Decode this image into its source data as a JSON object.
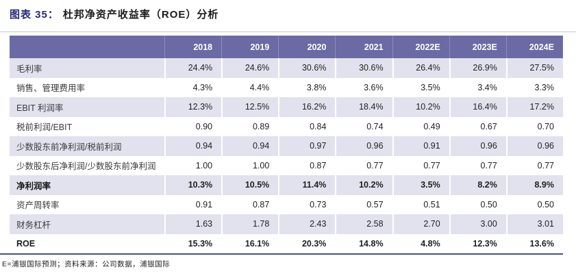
{
  "figure": {
    "label": "图表 35：",
    "title": "杜邦净资产收益率（ROE）分析"
  },
  "table": {
    "corner_label": "",
    "columns": [
      "2018",
      "2019",
      "2020",
      "2021",
      "2022E",
      "2023E",
      "2024E"
    ],
    "rows": [
      {
        "label": "毛利率",
        "bold": false,
        "values": [
          "24.4%",
          "24.6%",
          "30.6%",
          "30.6%",
          "26.4%",
          "26.9%",
          "27.5%"
        ]
      },
      {
        "label": "销售、管理费用率",
        "bold": false,
        "values": [
          "4.3%",
          "4.4%",
          "3.8%",
          "3.6%",
          "3.5%",
          "3.4%",
          "3.3%"
        ]
      },
      {
        "label": "EBIT 利润率",
        "bold": false,
        "values": [
          "12.3%",
          "12.5%",
          "16.2%",
          "18.4%",
          "10.2%",
          "16.4%",
          "17.2%"
        ]
      },
      {
        "label": "税前利润/EBIT",
        "bold": false,
        "values": [
          "0.90",
          "0.89",
          "0.84",
          "0.74",
          "0.49",
          "0.67",
          "0.70"
        ]
      },
      {
        "label": "少数股东前净利润/税前利润",
        "bold": false,
        "values": [
          "0.94",
          "0.94",
          "0.97",
          "0.96",
          "0.91",
          "0.96",
          "0.96"
        ]
      },
      {
        "label": "少数股东后净利润/少数股东前净利润",
        "bold": false,
        "values": [
          "1.00",
          "1.00",
          "0.87",
          "0.77",
          "0.77",
          "0.77",
          "0.77"
        ]
      },
      {
        "label": "净利润率",
        "bold": true,
        "values": [
          "10.3%",
          "10.5%",
          "11.4%",
          "10.2%",
          "3.5%",
          "8.2%",
          "8.9%"
        ]
      },
      {
        "label": "资产周转率",
        "bold": false,
        "values": [
          "0.91",
          "0.87",
          "0.73",
          "0.57",
          "0.51",
          "0.50",
          "0.50"
        ]
      },
      {
        "label": "财务杠杆",
        "bold": false,
        "values": [
          "1.63",
          "1.78",
          "2.43",
          "2.58",
          "2.70",
          "3.00",
          "3.01"
        ]
      },
      {
        "label": "ROE",
        "bold": true,
        "values": [
          "15.3%",
          "16.1%",
          "20.3%",
          "14.8%",
          "4.8%",
          "12.3%",
          "13.6%"
        ]
      }
    ]
  },
  "footnote": "E=浦银国际预测；资料来源：公司数据，浦银国际",
  "colors": {
    "header_bg": "#6B6AA5",
    "header_divider": "#8D8CBC",
    "row_alt_bg": "#E2E2EE",
    "row_plain_bg": "#FFFFFF",
    "top_rule": "#C6C6D6",
    "bottom_rule": "#3D5486",
    "figure_label": "#28287D"
  },
  "chart_data": {
    "type": "table",
    "title": "杜邦净资产收益率（ROE）分析",
    "categories": [
      "2018",
      "2019",
      "2020",
      "2021",
      "2022E",
      "2023E",
      "2024E"
    ],
    "series": [
      {
        "name": "毛利率",
        "values": [
          "24.4%",
          "24.6%",
          "30.6%",
          "30.6%",
          "26.4%",
          "26.9%",
          "27.5%"
        ]
      },
      {
        "name": "销售、管理费用率",
        "values": [
          "4.3%",
          "4.4%",
          "3.8%",
          "3.6%",
          "3.5%",
          "3.4%",
          "3.3%"
        ]
      },
      {
        "name": "EBIT 利润率",
        "values": [
          "12.3%",
          "12.5%",
          "16.2%",
          "18.4%",
          "10.2%",
          "16.4%",
          "17.2%"
        ]
      },
      {
        "name": "税前利润/EBIT",
        "values": [
          "0.90",
          "0.89",
          "0.84",
          "0.74",
          "0.49",
          "0.67",
          "0.70"
        ]
      },
      {
        "name": "少数股东前净利润/税前利润",
        "values": [
          "0.94",
          "0.94",
          "0.97",
          "0.96",
          "0.91",
          "0.96",
          "0.96"
        ]
      },
      {
        "name": "少数股东后净利润/少数股东前净利润",
        "values": [
          "1.00",
          "1.00",
          "0.87",
          "0.77",
          "0.77",
          "0.77",
          "0.77"
        ]
      },
      {
        "name": "净利润率",
        "values": [
          "10.3%",
          "10.5%",
          "11.4%",
          "10.2%",
          "3.5%",
          "8.2%",
          "8.9%"
        ]
      },
      {
        "name": "资产周转率",
        "values": [
          "0.91",
          "0.87",
          "0.73",
          "0.57",
          "0.51",
          "0.50",
          "0.50"
        ]
      },
      {
        "name": "财务杠杆",
        "values": [
          "1.63",
          "1.78",
          "2.43",
          "2.58",
          "2.70",
          "3.00",
          "3.01"
        ]
      },
      {
        "name": "ROE",
        "values": [
          "15.3%",
          "16.1%",
          "20.3%",
          "14.8%",
          "4.8%",
          "12.3%",
          "13.6%"
        ]
      }
    ]
  }
}
